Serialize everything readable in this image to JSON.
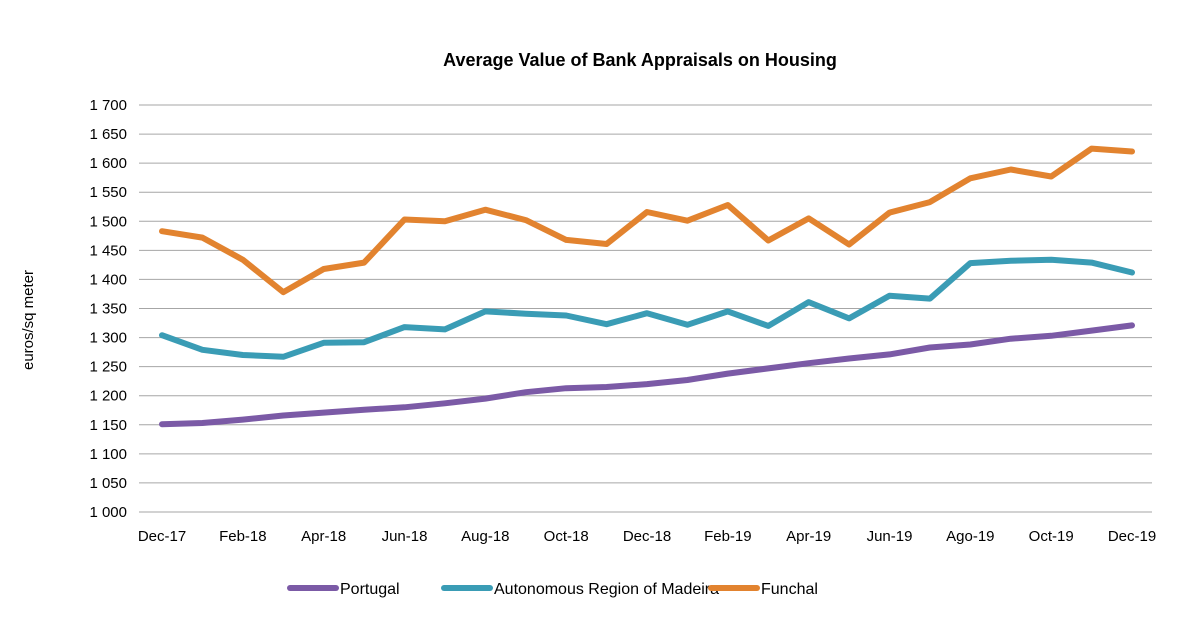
{
  "chart_data": {
    "type": "line",
    "title": "Average Value of Bank Appraisals on Housing",
    "xlabel": "",
    "ylabel": "euros/sq meter",
    "ylim": [
      1000,
      1700
    ],
    "y_ticks": [
      1000,
      1050,
      1100,
      1150,
      1200,
      1250,
      1300,
      1350,
      1400,
      1450,
      1500,
      1550,
      1600,
      1650,
      1700
    ],
    "y_tick_labels": [
      "1 000",
      "1 050",
      "1 100",
      "1 150",
      "1 200",
      "1 250",
      "1 300",
      "1 350",
      "1 400",
      "1 450",
      "1 500",
      "1 550",
      "1 600",
      "1 650",
      "1 700"
    ],
    "categories": [
      "Dec-17",
      "Jan-18",
      "Feb-18",
      "Mar-18",
      "Apr-18",
      "May-18",
      "Jun-18",
      "Jul-18",
      "Aug-18",
      "Sep-18",
      "Oct-18",
      "Nov-18",
      "Dec-18",
      "Jan-19",
      "Feb-19",
      "Mar-19",
      "Apr-19",
      "May-19",
      "Jun-19",
      "Jul-19",
      "Ago-19",
      "Sep-19",
      "Oct-19",
      "Nov-19",
      "Dec-19"
    ],
    "x_tick_labels": [
      "Dec-17",
      "",
      "Feb-18",
      "",
      "Apr-18",
      "",
      "Jun-18",
      "",
      "Aug-18",
      "",
      "Oct-18",
      "",
      "Dec-18",
      "",
      "Feb-19",
      "",
      "Apr-19",
      "",
      "Jun-19",
      "",
      "Ago-19",
      "",
      "Oct-19",
      "",
      "Dec-19"
    ],
    "grid": true,
    "legend_position": "bottom",
    "series": [
      {
        "name": "Portugal",
        "color": "#7b5aa6",
        "values": [
          1151,
          1153,
          1159,
          1166,
          1171,
          1176,
          1180,
          1187,
          1195,
          1206,
          1213,
          1215,
          1220,
          1227,
          1238,
          1247,
          1256,
          1264,
          1271,
          1283,
          1288,
          1298,
          1303,
          1312,
          1321
        ]
      },
      {
        "name": "Autonomous Region of Madeira",
        "color": "#3a9cb5",
        "values": [
          1304,
          1279,
          1270,
          1267,
          1291,
          1292,
          1318,
          1314,
          1345,
          1341,
          1338,
          1323,
          1342,
          1322,
          1345,
          1320,
          1361,
          1333,
          1372,
          1367,
          1428,
          1432,
          1434,
          1429,
          1412
        ]
      },
      {
        "name": "Funchal",
        "color": "#e2832f",
        "values": [
          1483,
          1472,
          1434,
          1378,
          1418,
          1429,
          1503,
          1500,
          1520,
          1502,
          1468,
          1461,
          1516,
          1501,
          1528,
          1467,
          1505,
          1460,
          1515,
          1533,
          1574,
          1589,
          1577,
          1625,
          1620
        ]
      }
    ]
  }
}
